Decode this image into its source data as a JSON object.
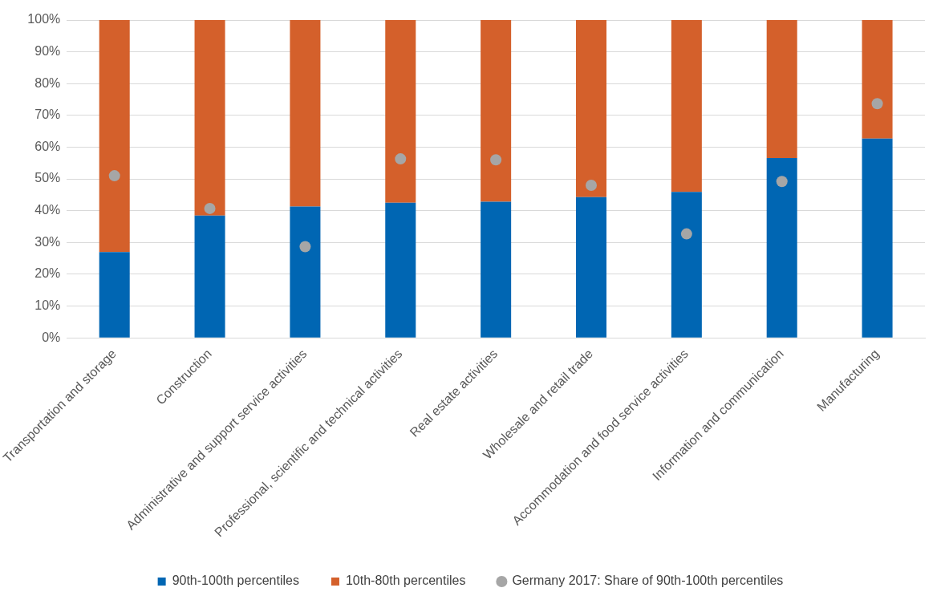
{
  "chart_data": {
    "type": "bar",
    "stacked": true,
    "categories": [
      "Transportation and storage",
      "Construction",
      "Administrative and support service activities",
      "Professional, scientific and technical activities",
      "Real estate activities",
      "Wholesale and retail trade",
      "Accommodation and food service activities",
      "Information and communication",
      "Manufacturing"
    ],
    "series": [
      {
        "name": "90th-100th percentiles",
        "color": "#0066b3",
        "values": [
          27,
          38.5,
          41.3,
          42.5,
          42.8,
          44.3,
          45.9,
          56.6,
          62.7
        ]
      },
      {
        "name": "10th-80th percentiles",
        "color": "#d4602b",
        "values": [
          73,
          61.5,
          58.7,
          57.5,
          57.2,
          55.7,
          54.1,
          43.4,
          37.3
        ]
      },
      {
        "name": "Germany 2017: Share of 90th-100th percentiles",
        "type": "scatter",
        "marker": "circle",
        "color": "#a6a6a6",
        "x": [
          "Transportation and storage",
          "Construction",
          "Administrative and support service activities",
          "Professional, scientific and technical activities",
          "Real estate activities",
          "Wholesale and retail trade",
          "Accommodation and food service activities",
          "Information and communication",
          "Manufacturing"
        ],
        "values": [
          51,
          40.7,
          28.7,
          56.3,
          56,
          48,
          32.7,
          49.2,
          73.7
        ]
      }
    ],
    "ylim": [
      0,
      100
    ],
    "yticks": [
      {
        "value": 0,
        "label": "0%"
      },
      {
        "value": 10,
        "label": "10%"
      },
      {
        "value": 20,
        "label": "20%"
      },
      {
        "value": 30,
        "label": "30%"
      },
      {
        "value": 40,
        "label": "40%"
      },
      {
        "value": 50,
        "label": "50%"
      },
      {
        "value": 60,
        "label": "60%"
      },
      {
        "value": 70,
        "label": "70%"
      },
      {
        "value": 80,
        "label": "80%"
      },
      {
        "value": 90,
        "label": "90%"
      },
      {
        "value": 100,
        "label": "100%"
      }
    ],
    "grid": "y",
    "legend": "bottom"
  }
}
